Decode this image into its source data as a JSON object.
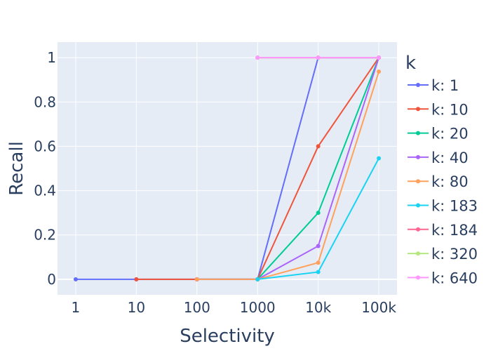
{
  "chart_data": {
    "type": "line",
    "xlabel": "Selectivity",
    "ylabel": "Recall",
    "x_scale": "log",
    "x": [
      1,
      10,
      100,
      1000,
      10000,
      100000
    ],
    "x_tick_labels": [
      "1",
      "10",
      "100",
      "1000",
      "10k",
      "100k"
    ],
    "y_ticks": [
      0,
      0.2,
      0.4,
      0.6,
      0.8,
      1
    ],
    "y_tick_labels": [
      "0",
      "0.2",
      "0.4",
      "0.6",
      "0.8",
      "1"
    ],
    "ylim": [
      -0.07,
      1.07
    ],
    "grid": true,
    "legend_title": "k",
    "legend_position": "right",
    "series": [
      {
        "name": "k: 1",
        "color": "#636efa",
        "x": [
          1,
          10,
          100,
          1000,
          10000,
          100000
        ],
        "y": [
          0,
          0,
          0,
          0,
          1,
          1
        ]
      },
      {
        "name": "k: 10",
        "color": "#ef553b",
        "x": [
          10,
          100,
          1000,
          10000,
          100000
        ],
        "y": [
          0,
          0,
          0,
          0.6,
          1
        ]
      },
      {
        "name": "k: 20",
        "color": "#00cc96",
        "x": [
          100,
          1000,
          10000,
          100000
        ],
        "y": [
          0,
          0,
          0.3,
          1
        ]
      },
      {
        "name": "k: 40",
        "color": "#ab63fa",
        "x": [
          100,
          1000,
          10000,
          100000
        ],
        "y": [
          0,
          0,
          0.15,
          1
        ]
      },
      {
        "name": "k: 80",
        "color": "#ffa15a",
        "x": [
          100,
          1000,
          10000,
          100000
        ],
        "y": [
          0,
          0,
          0.075,
          0.937
        ]
      },
      {
        "name": "k: 183",
        "color": "#19d3f3",
        "x": [
          1000,
          10000,
          100000
        ],
        "y": [
          0,
          0.033,
          0.546
        ]
      },
      {
        "name": "k: 184",
        "color": "#ff6692",
        "x": [
          1000,
          10000,
          100000
        ],
        "y": [
          1,
          1,
          1
        ]
      },
      {
        "name": "k: 320",
        "color": "#b6e880",
        "x": [
          1000,
          10000,
          100000
        ],
        "y": [
          1,
          1,
          1
        ]
      },
      {
        "name": "k: 640",
        "color": "#ff97ff",
        "x": [
          1000,
          10000,
          100000
        ],
        "y": [
          1,
          1,
          1
        ]
      }
    ]
  }
}
